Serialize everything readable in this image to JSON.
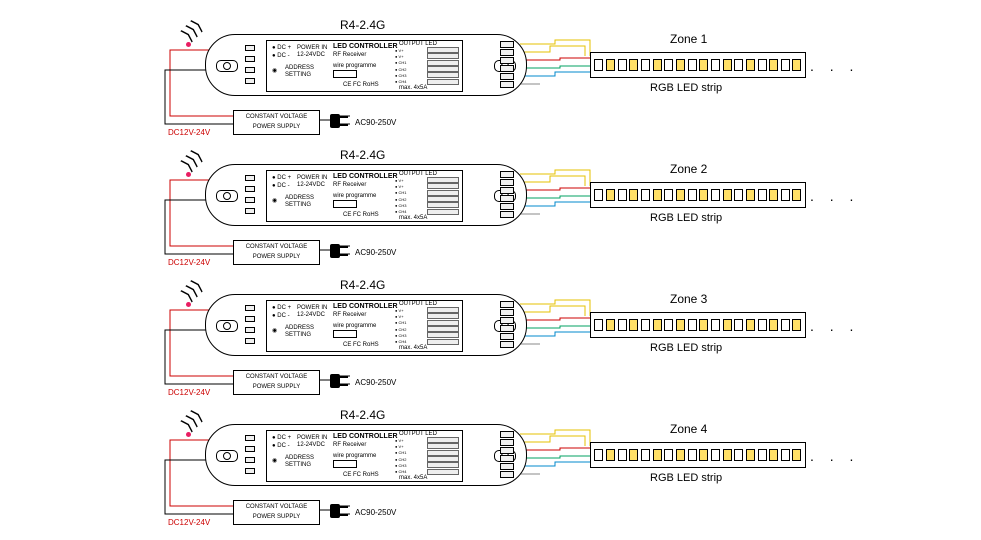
{
  "model": "R4-2.4G",
  "controller_title": "LED CONTROLLER",
  "controller_subtitle": "RF Receiver",
  "output_label": "OUTPUT LED",
  "max_label": "max. 4x5A",
  "compliance": "CE FC RoHS",
  "dc_label": "DC12V-24V",
  "psu_line1": "CONSTANT VOLTAGE",
  "psu_line2": "POWER SUPPLY",
  "ac_label": "AC90-250V",
  "strip_label": "RGB LED strip",
  "dc_plus": "DC +",
  "dc_minus": "DC -",
  "power_in": "POWER IN",
  "power_range": "12-24VDC",
  "address": "ADDRESS",
  "setting": "SETTING",
  "wire_prog": "wire programme",
  "zones": [
    {
      "name": "Zone 1"
    },
    {
      "name": "Zone 2"
    },
    {
      "name": "Zone 3"
    },
    {
      "name": "Zone 4"
    }
  ],
  "wire_colors": {
    "dc_pos": "#cc0000",
    "dc_neg": "#000000",
    "v_plus": "#e6c200",
    "red": "#cc0000",
    "green": "#00a060",
    "blue": "#0088cc"
  },
  "led_colors": [
    "#ffffff",
    "#ffe066",
    "#ffffff",
    "#ffe066",
    "#ffffff",
    "#ffe066",
    "#ffffff",
    "#ffe066",
    "#ffffff",
    "#ffe066",
    "#ffffff",
    "#ffe066",
    "#ffffff",
    "#ffe066",
    "#ffffff",
    "#ffe066",
    "#ffffff",
    "#ffe066"
  ],
  "continuation": ". . ."
}
